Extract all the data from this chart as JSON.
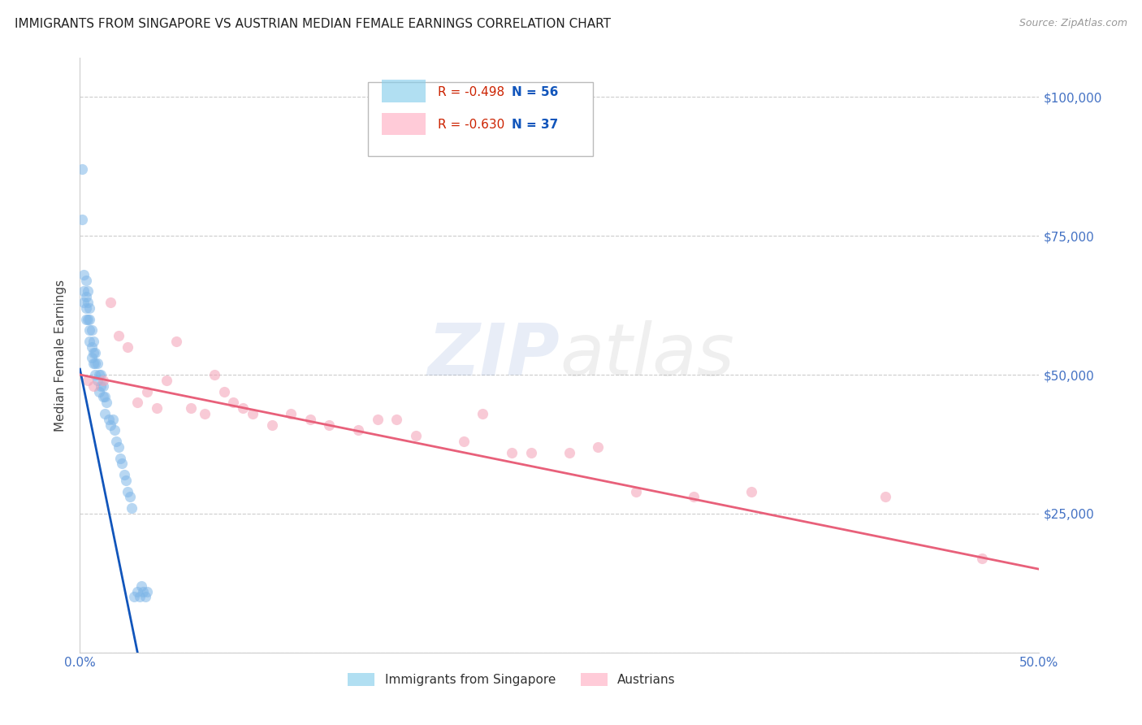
{
  "title": "IMMIGRANTS FROM SINGAPORE VS AUSTRIAN MEDIAN FEMALE EARNINGS CORRELATION CHART",
  "source": "Source: ZipAtlas.com",
  "ylabel": "Median Female Earnings",
  "xlim": [
    0.0,
    0.5
  ],
  "ylim": [
    0,
    107000
  ],
  "yticks": [
    0,
    25000,
    50000,
    75000,
    100000
  ],
  "ytick_labels": [
    "",
    "$25,000",
    "$50,000",
    "$75,000",
    "$100,000"
  ],
  "xticks": [
    0.0,
    0.1,
    0.2,
    0.3,
    0.4,
    0.5
  ],
  "xtick_labels": [
    "0.0%",
    "",
    "",
    "",
    "",
    "50.0%"
  ],
  "legend_label1": "Immigrants from Singapore",
  "legend_label2": "Austrians",
  "axis_color": "#4472C4",
  "background_color": "#ffffff",
  "grid_color": "#cccccc",
  "blue_scatter_x": [
    0.001,
    0.001,
    0.002,
    0.002,
    0.002,
    0.003,
    0.003,
    0.003,
    0.003,
    0.004,
    0.004,
    0.004,
    0.005,
    0.005,
    0.005,
    0.005,
    0.006,
    0.006,
    0.006,
    0.007,
    0.007,
    0.007,
    0.008,
    0.008,
    0.008,
    0.009,
    0.009,
    0.01,
    0.01,
    0.011,
    0.011,
    0.012,
    0.012,
    0.013,
    0.013,
    0.014,
    0.015,
    0.016,
    0.017,
    0.018,
    0.019,
    0.02,
    0.021,
    0.022,
    0.023,
    0.024,
    0.025,
    0.026,
    0.027,
    0.028,
    0.03,
    0.031,
    0.032,
    0.033,
    0.034,
    0.035
  ],
  "blue_scatter_y": [
    87000,
    78000,
    68000,
    65000,
    63000,
    67000,
    64000,
    62000,
    60000,
    65000,
    63000,
    60000,
    62000,
    60000,
    58000,
    56000,
    58000,
    55000,
    53000,
    56000,
    54000,
    52000,
    54000,
    52000,
    50000,
    52000,
    49000,
    50000,
    47000,
    50000,
    48000,
    48000,
    46000,
    46000,
    43000,
    45000,
    42000,
    41000,
    42000,
    40000,
    38000,
    37000,
    35000,
    34000,
    32000,
    31000,
    29000,
    28000,
    26000,
    10000,
    11000,
    10000,
    12000,
    11000,
    10000,
    11000
  ],
  "pink_scatter_x": [
    0.004,
    0.007,
    0.012,
    0.016,
    0.02,
    0.025,
    0.03,
    0.035,
    0.04,
    0.045,
    0.05,
    0.058,
    0.065,
    0.07,
    0.075,
    0.08,
    0.085,
    0.09,
    0.1,
    0.11,
    0.12,
    0.13,
    0.145,
    0.155,
    0.165,
    0.175,
    0.2,
    0.21,
    0.225,
    0.235,
    0.255,
    0.27,
    0.29,
    0.32,
    0.35,
    0.42,
    0.47
  ],
  "pink_scatter_y": [
    49000,
    48000,
    49000,
    63000,
    57000,
    55000,
    45000,
    47000,
    44000,
    49000,
    56000,
    44000,
    43000,
    50000,
    47000,
    45000,
    44000,
    43000,
    41000,
    43000,
    42000,
    41000,
    40000,
    42000,
    42000,
    39000,
    38000,
    43000,
    36000,
    36000,
    36000,
    37000,
    29000,
    28000,
    29000,
    28000,
    17000
  ],
  "blue_line_x": [
    0.0,
    0.03
  ],
  "blue_line_y": [
    51000,
    0
  ],
  "pink_line_x": [
    0.0,
    0.5
  ],
  "pink_line_y": [
    50000,
    15000
  ],
  "blue_color": "#7EB6E8",
  "pink_color": "#F4A0B5",
  "blue_line_color": "#1155BB",
  "pink_line_color": "#E8607A",
  "legend_blue_color": "#87CEEB",
  "legend_pink_color": "#FFB0C4",
  "legend_text_color": "#CC2200",
  "legend_n_color": "#1155BB",
  "legend_r1": "R = -0.498",
  "legend_n1": "N = 56",
  "legend_r2": "R = -0.630",
  "legend_n2": "N = 37"
}
